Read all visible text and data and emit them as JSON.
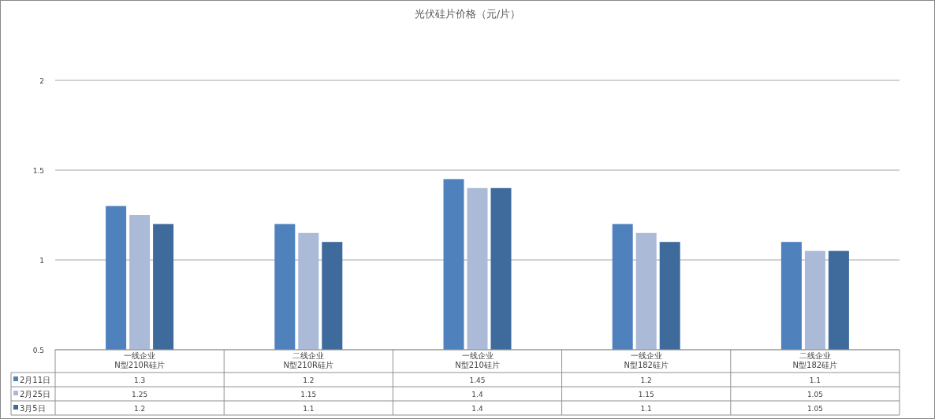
{
  "chart_data": {
    "type": "bar",
    "title": "光伏硅片价格（元/片）",
    "categories": [
      "一线企业 N型210R硅片",
      "二线企业 N型210R硅片",
      "一线企业 N型210硅片",
      "一线企业 N型182硅片",
      "二线企业 N型182硅片"
    ],
    "series": [
      {
        "name": "2月11日",
        "color": "#4f81bd",
        "values": [
          1.3,
          1.2,
          1.45,
          1.2,
          1.1
        ]
      },
      {
        "name": "2月25日",
        "color": "#aabad7",
        "values": [
          1.25,
          1.15,
          1.4,
          1.15,
          1.05
        ]
      },
      {
        "name": "3月5日",
        "color": "#3e6a9c",
        "values": [
          1.2,
          1.1,
          1.4,
          1.1,
          1.05
        ]
      }
    ],
    "ylim": [
      0.5,
      2
    ],
    "yticks": [
      0.5,
      1,
      1.5,
      2
    ],
    "grid": "y",
    "legend": "bottom left",
    "data_labels": true
  }
}
